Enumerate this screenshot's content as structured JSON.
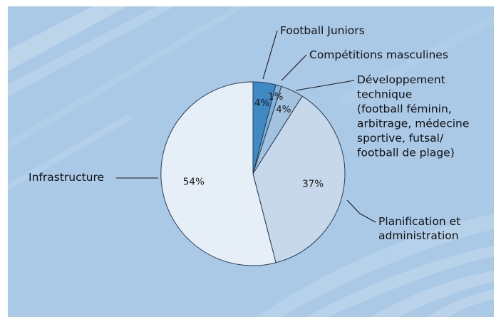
{
  "chart_data": {
    "type": "pie",
    "title": "",
    "categories": [
      "Football Juniors",
      "Compétitions masculines",
      "Développement technique (football féminin, arbitrage, médecine sportive, futsal/ football de plage)",
      "Planification et administration",
      "Infrastructure"
    ],
    "values": [
      4,
      1,
      4,
      37,
      54
    ],
    "value_labels": [
      "4%",
      "1%",
      "4%",
      "37%",
      "54%"
    ],
    "legend": "callout-labels",
    "slices": [
      {
        "category": "Football Juniors",
        "value": 4,
        "label": "4%",
        "lines": [
          "Football Juniors"
        ],
        "color": "#3f8ac4"
      },
      {
        "category": "Compétitions masculines",
        "value": 1,
        "label": "1%",
        "lines": [
          "Compétitions masculines"
        ],
        "color": "#7fb0d9"
      },
      {
        "category": "Développement technique",
        "value": 4,
        "label": "4%",
        "lines": [
          "Développement",
          "technique",
          "(football féminin,",
          "arbitrage, médecine",
          "sportive, futsal/",
          "football de plage)"
        ],
        "color": "#a2c2df"
      },
      {
        "category": "Planification et administration",
        "value": 37,
        "label": "37%",
        "lines": [
          "Planification et",
          "administration"
        ],
        "color": "#c6d8e9"
      },
      {
        "category": "Infrastructure",
        "value": 54,
        "label": "54%",
        "lines": [
          "Infrastructure"
        ],
        "color": "#e6eef7"
      }
    ],
    "colors": {
      "panel_background": "#a9c9e6",
      "slice_outline": "#2a3f55"
    }
  }
}
